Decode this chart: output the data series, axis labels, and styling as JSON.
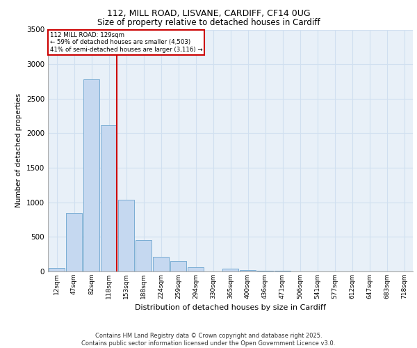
{
  "title_line1": "112, MILL ROAD, LISVANE, CARDIFF, CF14 0UG",
  "title_line2": "Size of property relative to detached houses in Cardiff",
  "xlabel": "Distribution of detached houses by size in Cardiff",
  "ylabel": "Number of detached properties",
  "categories": [
    "12sqm",
    "47sqm",
    "82sqm",
    "118sqm",
    "153sqm",
    "188sqm",
    "224sqm",
    "259sqm",
    "294sqm",
    "330sqm",
    "365sqm",
    "400sqm",
    "436sqm",
    "471sqm",
    "506sqm",
    "541sqm",
    "577sqm",
    "612sqm",
    "647sqm",
    "683sqm",
    "718sqm"
  ],
  "values": [
    55,
    850,
    2780,
    2120,
    1040,
    455,
    210,
    150,
    60,
    5,
    40,
    20,
    15,
    10,
    5,
    0,
    0,
    0,
    0,
    0,
    0
  ],
  "bar_color": "#c5d8f0",
  "bar_edge_color": "#7aadd4",
  "grid_color": "#d0dff0",
  "background_color": "#e8f0f8",
  "annotation_box_color": "#cc0000",
  "vline_color": "#cc0000",
  "vline_x_index": 3,
  "annotation_title": "112 MILL ROAD: 129sqm",
  "annotation_line1": "← 59% of detached houses are smaller (4,503)",
  "annotation_line2": "41% of semi-detached houses are larger (3,116) →",
  "ylim": [
    0,
    3500
  ],
  "yticks": [
    0,
    500,
    1000,
    1500,
    2000,
    2500,
    3000,
    3500
  ],
  "footer_line1": "Contains HM Land Registry data © Crown copyright and database right 2025.",
  "footer_line2": "Contains public sector information licensed under the Open Government Licence v3.0."
}
